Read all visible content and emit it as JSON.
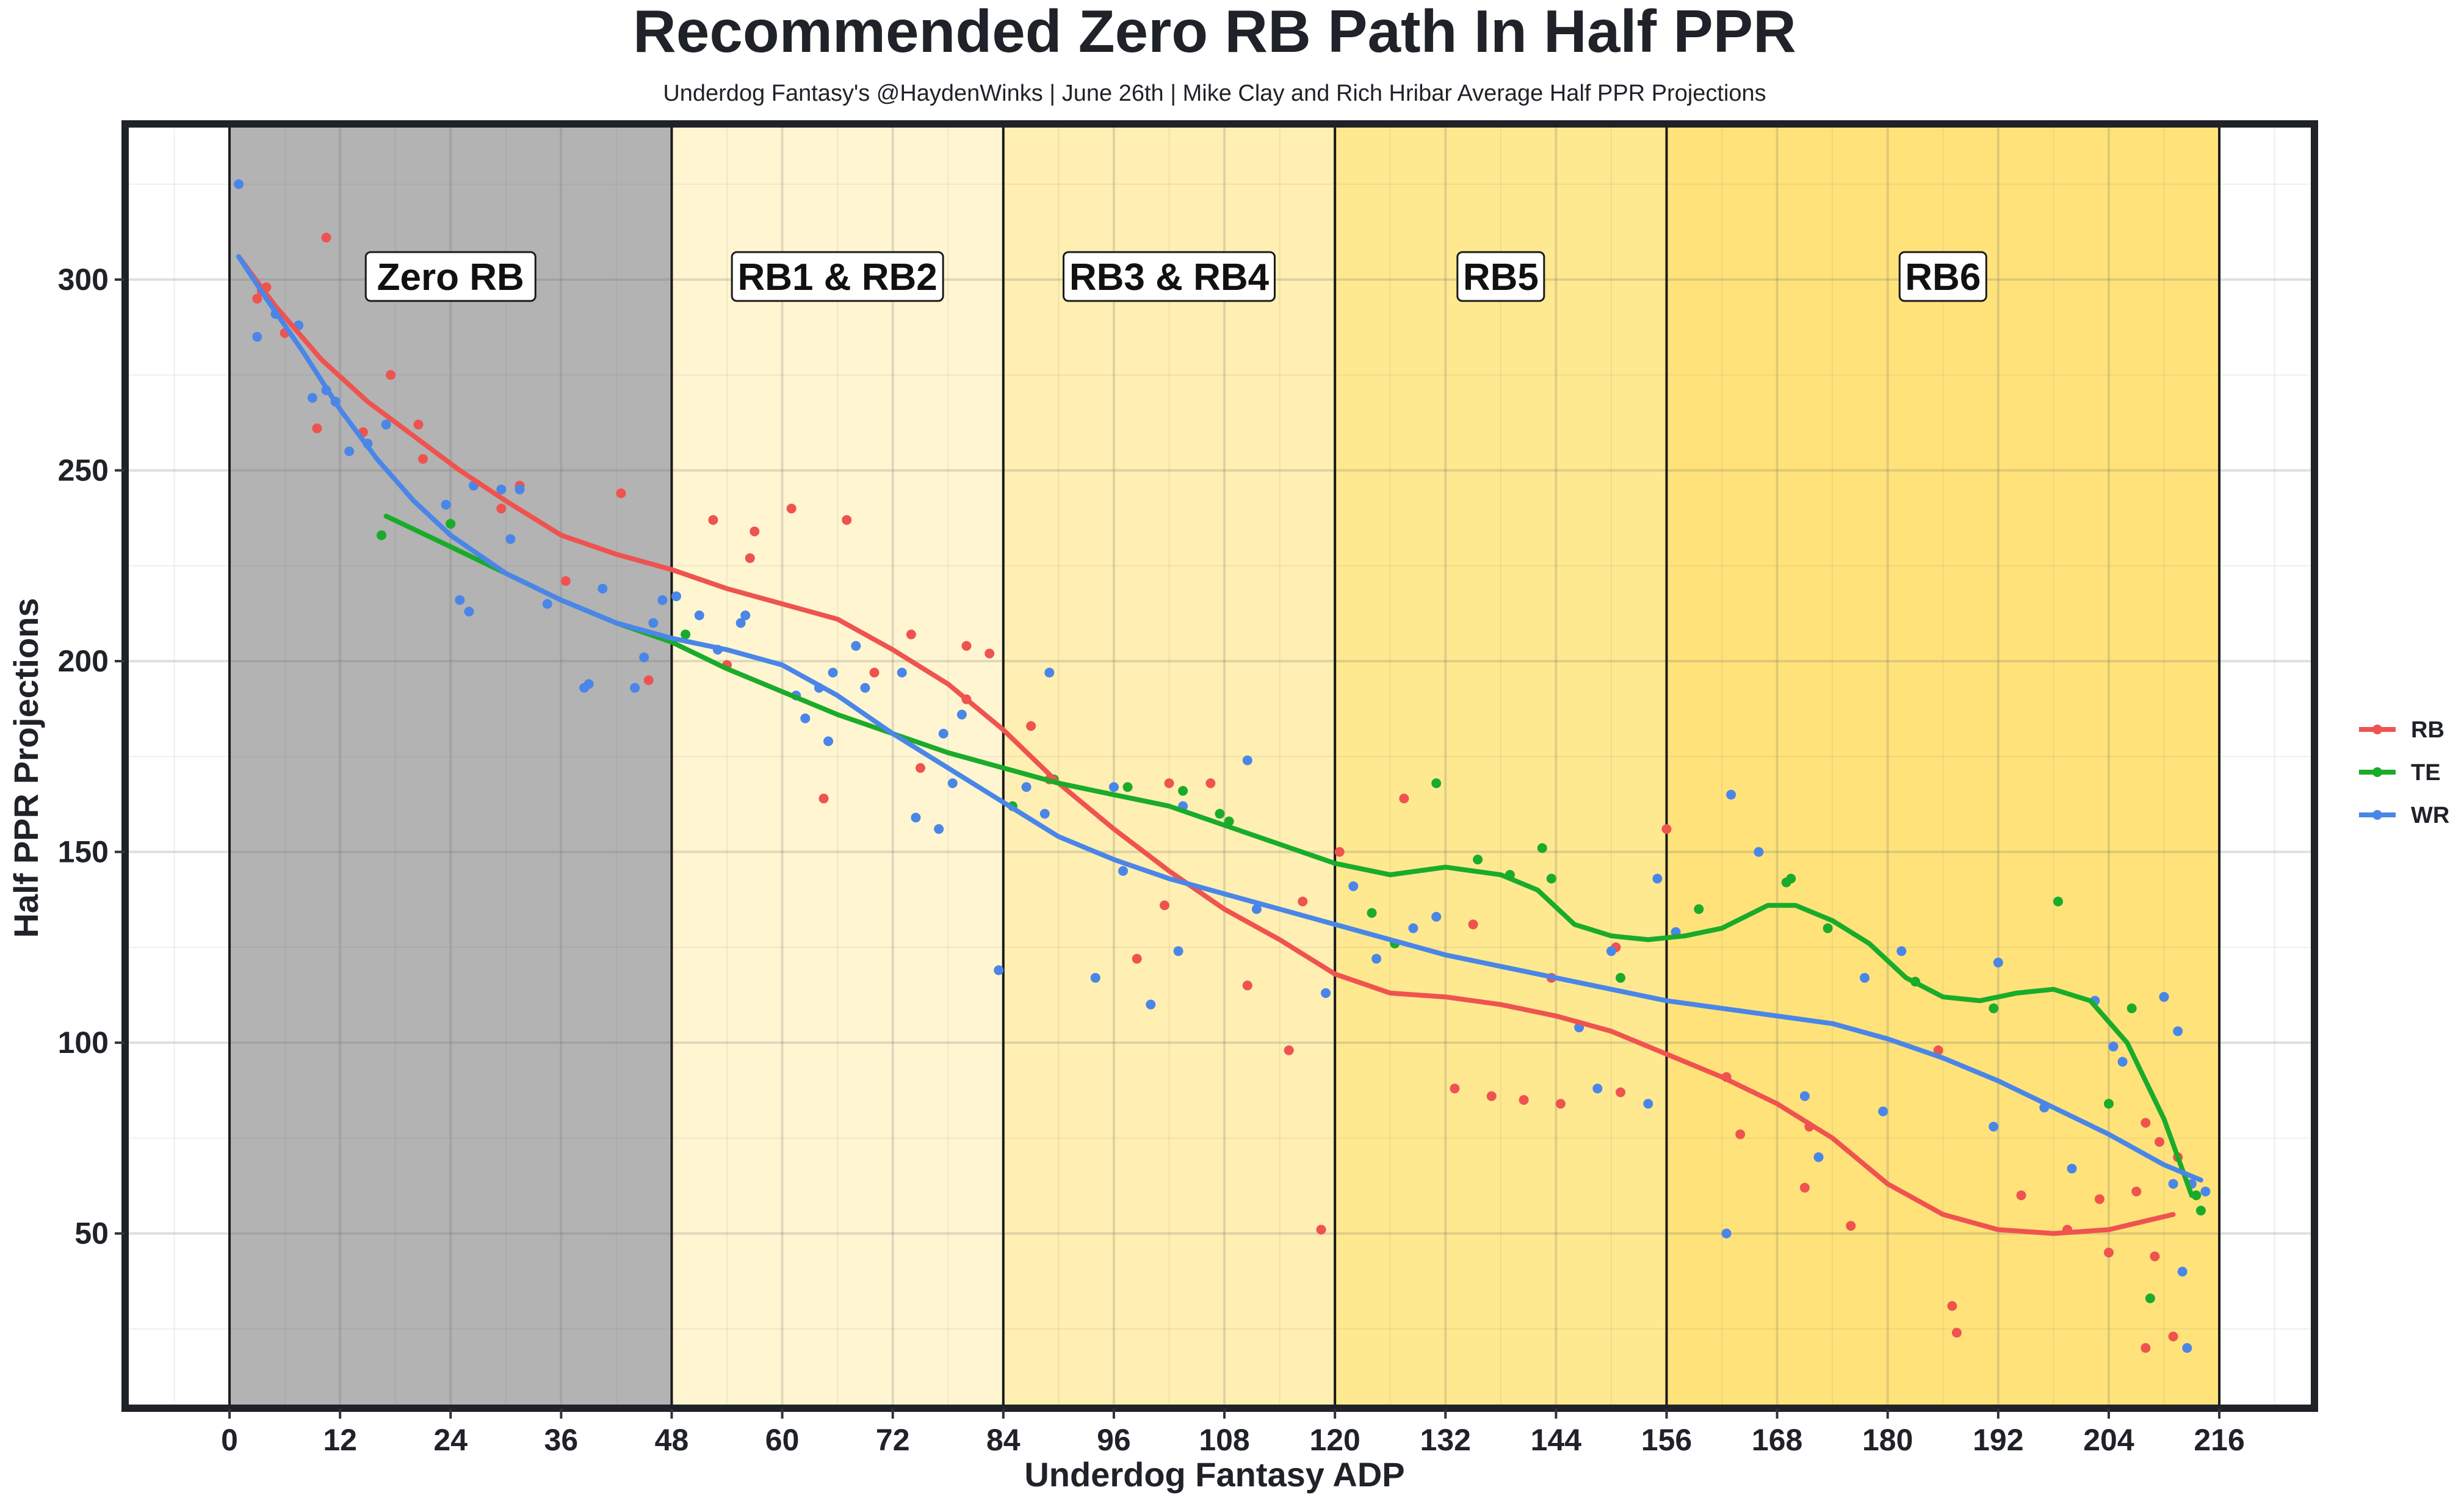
{
  "chart_data": {
    "type": "scatter",
    "title": "Recommended Zero RB Path In Half PPR",
    "subtitle": "Underdog Fantasy's @HaydenWinks | June 26th | Mike Clay and Rich Hribar Average Half PPR Projections",
    "xlabel": "Underdog Fantasy ADP",
    "ylabel": "Half PPR Projections",
    "xlim": [
      -11,
      226
    ],
    "ylim": [
      5,
      340
    ],
    "x_ticks": [
      "0",
      "12",
      "24",
      "36",
      "48",
      "60",
      "72",
      "84",
      "96",
      "108",
      "120",
      "132",
      "144",
      "156",
      "168",
      "180",
      "192",
      "204",
      "216"
    ],
    "y_ticks": [
      "50",
      "100",
      "150",
      "200",
      "250",
      "300"
    ],
    "grid": true,
    "legend_position": "right",
    "zones": [
      {
        "label": "Zero RB",
        "x_start": 0,
        "x_end": 48,
        "color": "#b3b3b3"
      },
      {
        "label": "RB1 & RB2",
        "x_start": 48,
        "x_end": 84,
        "color": "#fff6d1"
      },
      {
        "label": "RB3 & RB4",
        "x_start": 84,
        "x_end": 120,
        "color": "#ffefb2"
      },
      {
        "label": "RB5",
        "x_start": 120,
        "x_end": 156,
        "color": "#ffe990"
      },
      {
        "label": "RB6",
        "x_start": 156,
        "x_end": 216,
        "color": "#ffe37a"
      }
    ],
    "series": [
      {
        "name": "RB",
        "color": "#ef5350",
        "points": [
          [
            3,
            295
          ],
          [
            3.5,
            297
          ],
          [
            4,
            298
          ],
          [
            6,
            286
          ],
          [
            9.5,
            261
          ],
          [
            10.5,
            311
          ],
          [
            14.5,
            260
          ],
          [
            17.5,
            275
          ],
          [
            20.5,
            262
          ],
          [
            21,
            253
          ],
          [
            29.5,
            240
          ],
          [
            31.5,
            246
          ],
          [
            36.5,
            221
          ],
          [
            42.5,
            244
          ],
          [
            45.5,
            195
          ],
          [
            52.5,
            237
          ],
          [
            54,
            199
          ],
          [
            56.5,
            227
          ],
          [
            57,
            234
          ],
          [
            61,
            240
          ],
          [
            64.5,
            164
          ],
          [
            67,
            237
          ],
          [
            70,
            197
          ],
          [
            74,
            207
          ],
          [
            75,
            172
          ],
          [
            80,
            190
          ],
          [
            80,
            204
          ],
          [
            82.5,
            202
          ],
          [
            87,
            183
          ],
          [
            89,
            169
          ],
          [
            98.5,
            122
          ],
          [
            101.5,
            136
          ],
          [
            102,
            168
          ],
          [
            106.5,
            168
          ],
          [
            110.5,
            115
          ],
          [
            115,
            98
          ],
          [
            116.5,
            137
          ],
          [
            118.5,
            51
          ],
          [
            120.5,
            150
          ],
          [
            127.5,
            164
          ],
          [
            133,
            88
          ],
          [
            135,
            131
          ],
          [
            137,
            86
          ],
          [
            140.5,
            85
          ],
          [
            143.5,
            117
          ],
          [
            144.5,
            84
          ],
          [
            150.5,
            125
          ],
          [
            151,
            87
          ],
          [
            156,
            156
          ],
          [
            162.5,
            91
          ],
          [
            164,
            76
          ],
          [
            171,
            62
          ],
          [
            171.5,
            78
          ],
          [
            176,
            52
          ],
          [
            185.5,
            98
          ],
          [
            187,
            31
          ],
          [
            187.5,
            24
          ],
          [
            194.5,
            60
          ],
          [
            199.5,
            51
          ],
          [
            203,
            59
          ],
          [
            204,
            45
          ],
          [
            207,
            61
          ],
          [
            208,
            20
          ],
          [
            208,
            79
          ],
          [
            209,
            44
          ],
          [
            209.5,
            74
          ],
          [
            211,
            23
          ],
          [
            211.5,
            70
          ]
        ],
        "trend": [
          [
            1,
            306
          ],
          [
            5,
            293
          ],
          [
            10,
            279
          ],
          [
            15,
            268
          ],
          [
            20,
            259
          ],
          [
            25,
            250
          ],
          [
            30,
            242
          ],
          [
            36,
            233
          ],
          [
            42,
            228
          ],
          [
            48,
            224
          ],
          [
            54,
            219
          ],
          [
            60,
            215
          ],
          [
            66,
            211
          ],
          [
            72,
            203
          ],
          [
            78,
            194
          ],
          [
            84,
            182
          ],
          [
            90,
            168
          ],
          [
            96,
            156
          ],
          [
            102,
            145
          ],
          [
            108,
            135
          ],
          [
            114,
            127
          ],
          [
            120,
            118
          ],
          [
            126,
            113
          ],
          [
            132,
            112
          ],
          [
            138,
            110
          ],
          [
            144,
            107
          ],
          [
            150,
            103
          ],
          [
            156,
            97
          ],
          [
            162,
            91
          ],
          [
            168,
            84
          ],
          [
            174,
            75
          ],
          [
            180,
            63
          ],
          [
            186,
            55
          ],
          [
            192,
            51
          ],
          [
            198,
            50
          ],
          [
            204,
            51
          ],
          [
            211,
            55
          ]
        ]
      },
      {
        "name": "TE",
        "color": "#1aab2a",
        "points": [
          [
            16.5,
            233
          ],
          [
            24,
            236
          ],
          [
            49.5,
            207
          ],
          [
            85,
            162
          ],
          [
            89.5,
            169
          ],
          [
            97.5,
            167
          ],
          [
            103.5,
            166
          ],
          [
            107.5,
            160
          ],
          [
            108.5,
            158
          ],
          [
            124,
            134
          ],
          [
            126.5,
            126
          ],
          [
            131,
            168
          ],
          [
            135.5,
            148
          ],
          [
            139,
            144
          ],
          [
            142.5,
            151
          ],
          [
            143.5,
            143
          ],
          [
            151,
            117
          ],
          [
            159.5,
            135
          ],
          [
            169,
            142
          ],
          [
            169.5,
            143
          ],
          [
            173.5,
            130
          ],
          [
            183,
            116
          ],
          [
            191.5,
            109
          ],
          [
            198.5,
            137
          ],
          [
            204,
            84
          ],
          [
            206.5,
            109
          ],
          [
            208.5,
            33
          ],
          [
            210,
            112
          ],
          [
            213.5,
            60
          ],
          [
            214,
            56
          ]
        ],
        "trend": [
          [
            17,
            238
          ],
          [
            24,
            230
          ],
          [
            30,
            223
          ],
          [
            36,
            216
          ],
          [
            42,
            210
          ],
          [
            48,
            205
          ],
          [
            54,
            198
          ],
          [
            60,
            192
          ],
          [
            66,
            186
          ],
          [
            72,
            181
          ],
          [
            78,
            176
          ],
          [
            84,
            172
          ],
          [
            90,
            168
          ],
          [
            96,
            165
          ],
          [
            102,
            162
          ],
          [
            108,
            157
          ],
          [
            114,
            152
          ],
          [
            120,
            147
          ],
          [
            126,
            144
          ],
          [
            132,
            146
          ],
          [
            138,
            144
          ],
          [
            142,
            140
          ],
          [
            146,
            131
          ],
          [
            150,
            128
          ],
          [
            154,
            127
          ],
          [
            158,
            128
          ],
          [
            162,
            130
          ],
          [
            167,
            136
          ],
          [
            170,
            136
          ],
          [
            174,
            132
          ],
          [
            178,
            126
          ],
          [
            182,
            117
          ],
          [
            186,
            112
          ],
          [
            190,
            111
          ],
          [
            194,
            113
          ],
          [
            198,
            114
          ],
          [
            202,
            111
          ],
          [
            206,
            100
          ],
          [
            210,
            80
          ],
          [
            213,
            60
          ]
        ]
      },
      {
        "name": "WR",
        "color": "#4a86e8",
        "points": [
          [
            1,
            325
          ],
          [
            3,
            285
          ],
          [
            5,
            291
          ],
          [
            7.5,
            288
          ],
          [
            9,
            269
          ],
          [
            10.5,
            271
          ],
          [
            11.5,
            268
          ],
          [
            13,
            255
          ],
          [
            15,
            257
          ],
          [
            17,
            262
          ],
          [
            23.5,
            241
          ],
          [
            25,
            216
          ],
          [
            26,
            213
          ],
          [
            26.5,
            246
          ],
          [
            29.5,
            245
          ],
          [
            30.5,
            232
          ],
          [
            31.5,
            245
          ],
          [
            34.5,
            215
          ],
          [
            38.5,
            193
          ],
          [
            39,
            194
          ],
          [
            40.5,
            219
          ],
          [
            44,
            193
          ],
          [
            45,
            201
          ],
          [
            46,
            210
          ],
          [
            47,
            216
          ],
          [
            48.5,
            217
          ],
          [
            51,
            212
          ],
          [
            53,
            203
          ],
          [
            55.5,
            210
          ],
          [
            56,
            212
          ],
          [
            61.5,
            191
          ],
          [
            62.5,
            185
          ],
          [
            64,
            193
          ],
          [
            65,
            179
          ],
          [
            65.5,
            197
          ],
          [
            68,
            204
          ],
          [
            69,
            193
          ],
          [
            73,
            197
          ],
          [
            74.5,
            159
          ],
          [
            77,
            156
          ],
          [
            77.5,
            181
          ],
          [
            78.5,
            168
          ],
          [
            79.5,
            186
          ],
          [
            83.5,
            119
          ],
          [
            86.5,
            167
          ],
          [
            88.5,
            160
          ],
          [
            89,
            197
          ],
          [
            94,
            117
          ],
          [
            96,
            167
          ],
          [
            97,
            145
          ],
          [
            100,
            110
          ],
          [
            103,
            124
          ],
          [
            103.5,
            162
          ],
          [
            110.5,
            174
          ],
          [
            111.5,
            135
          ],
          [
            119,
            113
          ],
          [
            122,
            141
          ],
          [
            124.5,
            122
          ],
          [
            128.5,
            130
          ],
          [
            131,
            133
          ],
          [
            146.5,
            104
          ],
          [
            148.5,
            88
          ],
          [
            150,
            124
          ],
          [
            154,
            84
          ],
          [
            155,
            143
          ],
          [
            157,
            129
          ],
          [
            162.5,
            50
          ],
          [
            163,
            165
          ],
          [
            166,
            150
          ],
          [
            171,
            86
          ],
          [
            172.5,
            70
          ],
          [
            177.5,
            117
          ],
          [
            179.5,
            82
          ],
          [
            181.5,
            124
          ],
          [
            191.5,
            78
          ],
          [
            192,
            121
          ],
          [
            197,
            83
          ],
          [
            200,
            67
          ],
          [
            202.5,
            111
          ],
          [
            204.5,
            99
          ],
          [
            205.5,
            95
          ],
          [
            210,
            112
          ],
          [
            211,
            63
          ],
          [
            211.5,
            103
          ],
          [
            212,
            40
          ],
          [
            212.5,
            20
          ],
          [
            213,
            63
          ],
          [
            214.5,
            61
          ]
        ],
        "trend": [
          [
            1,
            306
          ],
          [
            4,
            295
          ],
          [
            8,
            281
          ],
          [
            12,
            266
          ],
          [
            16,
            253
          ],
          [
            20,
            242
          ],
          [
            24,
            233
          ],
          [
            30,
            223
          ],
          [
            36,
            216
          ],
          [
            42,
            210
          ],
          [
            48,
            206
          ],
          [
            54,
            203
          ],
          [
            60,
            199
          ],
          [
            66,
            191
          ],
          [
            72,
            181
          ],
          [
            78,
            172
          ],
          [
            84,
            163
          ],
          [
            90,
            154
          ],
          [
            96,
            148
          ],
          [
            102,
            143
          ],
          [
            108,
            139
          ],
          [
            114,
            135
          ],
          [
            120,
            131
          ],
          [
            126,
            127
          ],
          [
            132,
            123
          ],
          [
            138,
            120
          ],
          [
            144,
            117
          ],
          [
            150,
            114
          ],
          [
            156,
            111
          ],
          [
            162,
            109
          ],
          [
            168,
            107
          ],
          [
            174,
            105
          ],
          [
            180,
            101
          ],
          [
            186,
            96
          ],
          [
            192,
            90
          ],
          [
            198,
            83
          ],
          [
            204,
            76
          ],
          [
            210,
            68
          ],
          [
            214,
            64
          ]
        ]
      }
    ]
  }
}
